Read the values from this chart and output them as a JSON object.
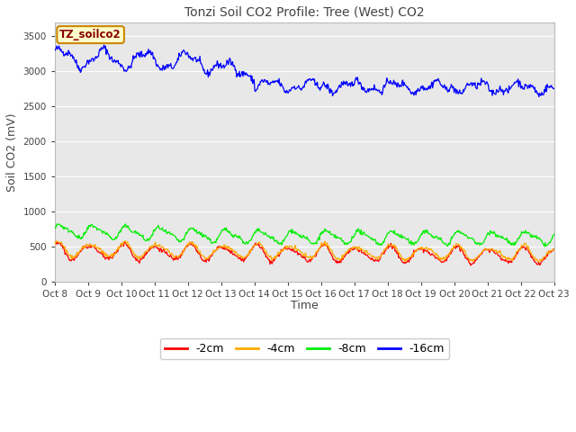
{
  "title": "Tonzi Soil CO2 Profile: Tree (West) CO2",
  "ylabel": "Soil CO2 (mV)",
  "xlabel": "Time",
  "ylim": [
    0,
    3700
  ],
  "yticks": [
    0,
    500,
    1000,
    1500,
    2000,
    2500,
    3000,
    3500
  ],
  "xtick_labels": [
    "Oct 8",
    "Oct 9",
    "Oct 10",
    "Oct 11",
    "Oct 12",
    "Oct 13",
    "Oct 14",
    "Oct 15",
    "Oct 16",
    "Oct 17",
    "Oct 18",
    "Oct 19",
    "Oct 20",
    "Oct 21",
    "Oct 22",
    "Oct 23"
  ],
  "legend_labels": [
    "-2cm",
    "-4cm",
    "-8cm",
    "-16cm"
  ],
  "legend_colors": [
    "#ff0000",
    "#ffaa00",
    "#00ee00",
    "#0000ff"
  ],
  "fig_bg": "#ffffff",
  "plot_bg": "#e8e8e8",
  "grid_color": "#ffffff",
  "annotation_text": "TZ_soilco2",
  "annotation_bg": "#ffffcc",
  "annotation_border": "#cc8800",
  "annotation_text_color": "#880000",
  "title_color": "#444444",
  "axis_label_color": "#444444",
  "tick_color": "#444444"
}
